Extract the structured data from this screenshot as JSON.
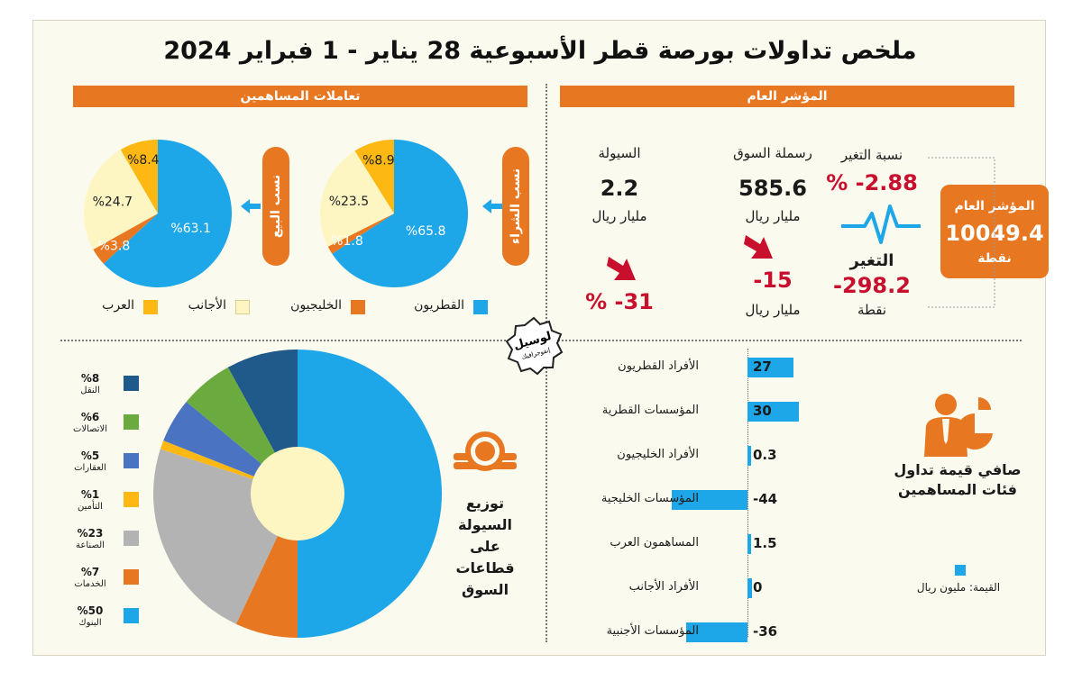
{
  "title": "ملخص تداولات بورصة قطر الأسبوعية 28 يناير - 1 فبراير 2024",
  "sections": {
    "general_index": "المؤشر العام",
    "shareholders": "تعاملات المساهمين"
  },
  "index_box": {
    "label": "المؤشر العام",
    "value": "10049.4",
    "unit": "نقطة"
  },
  "change_pct": {
    "label": "نسبة التغير",
    "value": "2.88- %"
  },
  "change_points": {
    "label": "التغير",
    "value": "298.2-",
    "unit": "نقطة"
  },
  "market_cap": {
    "label": "رسملة السوق",
    "value": "585.6",
    "unit": "مليار ريال",
    "change_value": "15-",
    "change_unit": "مليار ريال"
  },
  "liquidity": {
    "label": "السيولة",
    "value": "2.2",
    "unit": "مليار ريال",
    "change_value": "31- %"
  },
  "buy_label": "نسب الشراء",
  "sell_label": "نسب البيع",
  "shareholder_legend": [
    "القطريون",
    "الخليجيون",
    "الأجانب",
    "العرب"
  ],
  "sector_title": "توزيع السيولة على قطاعات السوق",
  "net_title": "صافي قيمة تداول فئات المساهمين",
  "net_unit": "القيمة: مليون ريال",
  "logo_text": "لوسيل",
  "logo_sub": "إنفوجرافيك",
  "colors": {
    "qataris": "#1ea7e8",
    "gulf": "#e87722",
    "foreigners": "#fdf6c3",
    "arabs": "#fdb813",
    "accent": "#e87722",
    "red": "#c8102e"
  },
  "chart_data": [
    {
      "type": "pie",
      "name": "نسب الشراء",
      "labels": [
        "القطريون",
        "الخليجيون",
        "الأجانب",
        "العرب"
      ],
      "values": [
        65.8,
        1.8,
        23.5,
        8.9
      ],
      "value_labels": [
        "%65.8",
        "%1.8",
        "%23.5",
        "%8.9"
      ]
    },
    {
      "type": "pie",
      "name": "نسب البيع",
      "labels": [
        "القطريون",
        "الخليجيون",
        "الأجانب",
        "العرب"
      ],
      "values": [
        63.1,
        3.8,
        24.7,
        8.4
      ],
      "value_labels": [
        "%63.1",
        "%3.8",
        "%24.7",
        "%8.4"
      ]
    },
    {
      "type": "pie",
      "name": "توزيع السيولة على قطاعات السوق",
      "labels": [
        "البنوك",
        "الخدمات",
        "الصناعة",
        "التأمين",
        "العقارات",
        "الاتصالات",
        "النقل"
      ],
      "values": [
        50,
        7,
        23,
        1,
        5,
        6,
        8
      ],
      "value_labels": [
        "%50",
        "%7",
        "%23",
        "%1",
        "%5",
        "%6",
        "%8"
      ],
      "colors": [
        "#1ea7e8",
        "#e87722",
        "#b3b3b3",
        "#fdb813",
        "#4a73c2",
        "#6aaa3f",
        "#1f5a8a"
      ]
    },
    {
      "type": "bar",
      "name": "صافي قيمة تداول فئات المساهمين",
      "categories": [
        "الأفراد القطريون",
        "المؤسسات القطرية",
        "الأفراد الخليجيون",
        "المؤسسات الخليجية",
        "المساهمون العرب",
        "الأفراد الأجانب",
        "المؤسسات الأجنبية"
      ],
      "values": [
        27,
        30,
        0.3,
        -44,
        1.5,
        0,
        -36
      ],
      "value_labels": [
        "27",
        "30",
        "0.3",
        "-44",
        "1.5",
        "0",
        "-36"
      ],
      "unit": "مليون ريال"
    }
  ]
}
